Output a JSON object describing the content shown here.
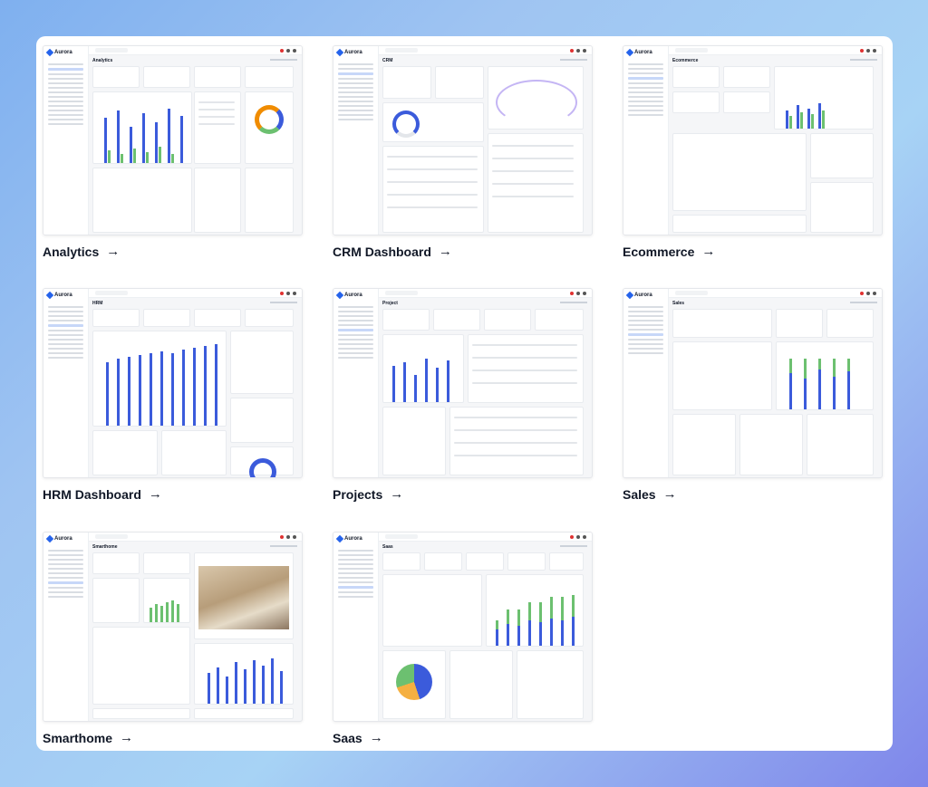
{
  "brand": "Aurora",
  "tiles": [
    {
      "title": "Analytics",
      "page": "Analytics"
    },
    {
      "title": "CRM Dashboard",
      "page": "CRM"
    },
    {
      "title": "Ecommerce",
      "page": "Ecommerce"
    },
    {
      "title": "HRM Dashboard",
      "page": "HRM"
    },
    {
      "title": "Projects",
      "page": "Project"
    },
    {
      "title": "Sales",
      "page": "Sales"
    },
    {
      "title": "Smarthome",
      "page": "Smarthome"
    },
    {
      "title": "Saas",
      "page": "Saas"
    }
  ],
  "arrow": "→",
  "colors": {
    "accent": "#3b5bdb",
    "green": "#6cc070",
    "background": "#ffffff"
  }
}
